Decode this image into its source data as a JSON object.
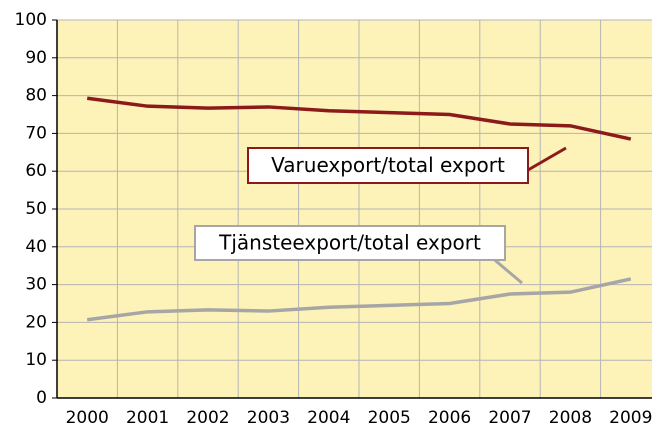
{
  "chart_data": {
    "type": "line",
    "categories": [
      "2000",
      "2001",
      "2002",
      "2003",
      "2004",
      "2005",
      "2006",
      "2007",
      "2008",
      "2009"
    ],
    "series": [
      {
        "name": "Varuexport/total export",
        "color": "#8b1a1a",
        "values": [
          79.3,
          77.2,
          76.7,
          77,
          76,
          75.5,
          75,
          72.5,
          72,
          68.5
        ]
      },
      {
        "name": "Tjänsteexport/total export",
        "color": "#a6a6a6",
        "values": [
          20.7,
          22.8,
          23.3,
          23,
          24,
          24.5,
          25,
          27.5,
          28,
          31.5
        ]
      }
    ],
    "ylim": [
      0,
      100
    ],
    "yticks": [
      0,
      10,
      20,
      30,
      40,
      50,
      60,
      70,
      80,
      90,
      100
    ],
    "grid": true,
    "background": "#fdf2b8"
  }
}
